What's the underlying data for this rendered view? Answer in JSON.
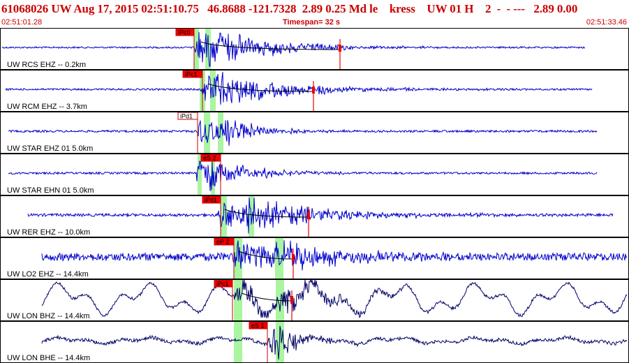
{
  "header": {
    "title": "61068026 UW Aug 17, 2015 02:51:10.75   46.8688 -121.7328  2.89 0.25 Md le    kress    UW 01 H    2  -  - ---   2.89 0.00",
    "start_time": "02:51:01.28",
    "timespan": "Timespan=  32 s",
    "end_time": "02:51:33.46"
  },
  "colors": {
    "header_text": "#cc0000",
    "trace_blue": "#0000cc",
    "trace_dark": "#000066",
    "pick_red": "#ee0000",
    "window_green": "#a9f5a0",
    "border": "#000000"
  },
  "channels": [
    {
      "label": "UW RCS EHZ -- 0.2km",
      "pick": "iPc0",
      "pick_style": "filled",
      "trace_color": "#0000cc"
    },
    {
      "label": "UW RCM EHZ -- 3.7km",
      "pick": "iPc1",
      "pick_style": "filled",
      "trace_color": "#0000cc"
    },
    {
      "label": "UW STAR EHZ 01 5.0km",
      "pick": "iPd1",
      "pick_style": "outline",
      "trace_color": "#0000cc"
    },
    {
      "label": "UW STAR EHN 01 5.0km",
      "pick": "eS 2",
      "pick_style": "filled",
      "trace_color": "#0000cc"
    },
    {
      "label": "UW RER EHZ -- 10.0km",
      "pick": "iPd1",
      "pick_style": "filled",
      "trace_color": "#0000cc"
    },
    {
      "label": "UW LO2 EHZ -- 14.4km",
      "pick": "eP 2",
      "pick_style": "filled",
      "trace_color": "#0000cc"
    },
    {
      "label": "UW LON BHZ -- 14.4km",
      "pick": "iPc1",
      "pick_style": "filled",
      "trace_color": "#000066"
    },
    {
      "label": "UW LON BHE -- 14.4km",
      "pick": "eS 1",
      "pick_style": "filled",
      "trace_color": "#000066"
    }
  ]
}
